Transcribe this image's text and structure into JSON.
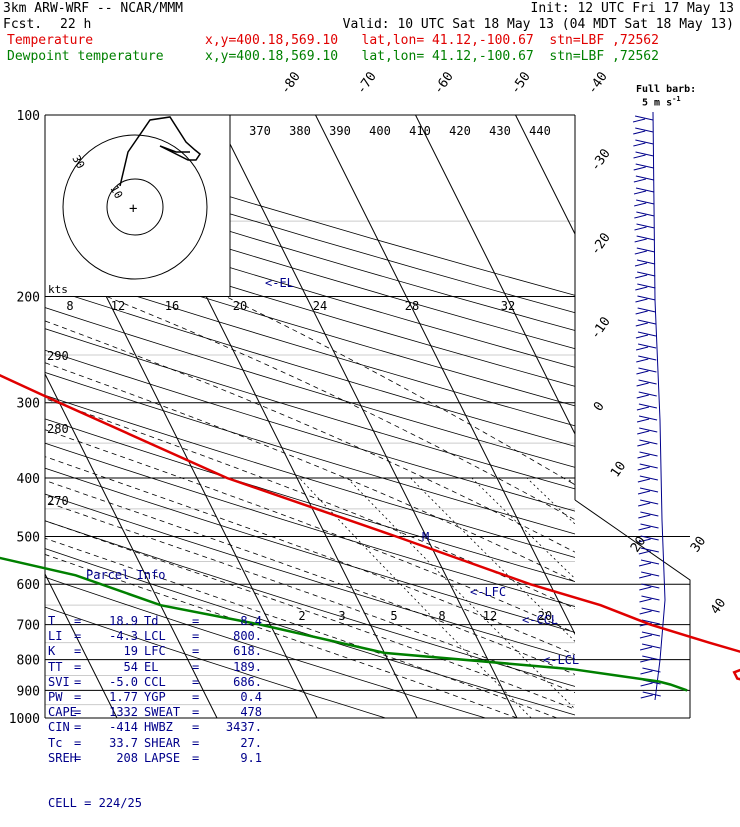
{
  "header": {
    "model": "3km ARW-WRF -- NCAR/MMM",
    "init": "Init: 12 UTC Fri 17 May 13",
    "fcst_label": "Fcst.",
    "fcst_value": "22 h",
    "valid": "Valid: 10 UTC Sat 18 May 13 (04 MDT Sat 18 May 13)",
    "temp_label": "Temperature",
    "temp_loc": "x,y=400.18,569.10   lat,lon= 41.12,-100.67  stn=LBF ,72562",
    "dew_label": "Dewpoint temperature",
    "dew_loc": "x,y=400.18,569.10   lat,lon= 41.12,-100.67  stn=LBF ,72562",
    "full_barb": "Full barb:",
    "full_barb_unit": "5 m s",
    "full_barb_sup": "-1"
  },
  "colors": {
    "temperature": "#e00000",
    "dewpoint": "#008000",
    "labels": "#00008b"
  },
  "hodograph": {
    "unit_label": "kts",
    "ring_labels": [
      "30",
      "10"
    ]
  },
  "parcel": {
    "title": "Parcel Info",
    "rows": [
      [
        "T",
        "18.9",
        "Td",
        "8.4"
      ],
      [
        "LI",
        "-4.3",
        "LCL",
        "800."
      ],
      [
        "K",
        "19",
        "LFC",
        "618."
      ],
      [
        "TT",
        "54",
        "EL",
        "189."
      ],
      [
        "SVI",
        "-5.0",
        "CCL",
        "686."
      ],
      [
        "PW",
        "1.77",
        "YGP",
        "0.4"
      ],
      [
        "CAPE",
        "1332",
        "SWEAT",
        "478"
      ],
      [
        "CIN",
        "-414",
        "HWBZ",
        "3437."
      ],
      [
        "Tc",
        "33.7",
        "SHEAR",
        "27."
      ],
      [
        "SREH",
        "208",
        "LAPSE",
        "9.1"
      ]
    ],
    "cell_label": "CELL =",
    "cell_value": "224/25"
  },
  "chart_data": {
    "type": "line",
    "chart_kind": "skew-T log-p sounding",
    "y_axis": {
      "scale": "log",
      "ylim": [
        1000,
        100
      ],
      "ticks": [
        100,
        200,
        300,
        400,
        500,
        600,
        700,
        800,
        900,
        1000
      ]
    },
    "isotherm_labels": [
      "-80",
      "-70",
      "-60",
      "-50",
      "-40",
      "-30",
      "-20",
      "-10",
      "0",
      "10",
      "20",
      "30",
      "40"
    ],
    "theta_labels": [
      "370",
      "380",
      "390",
      "400",
      "410",
      "420",
      "430",
      "440"
    ],
    "mixing_ratio_upper": [
      "8",
      "12",
      "16",
      "20",
      "24",
      "28",
      "32"
    ],
    "mixing_ratio_lower": [
      "2",
      "3",
      "5",
      "8",
      "12",
      "20"
    ],
    "left_side_labels": [
      "290",
      "280",
      "270"
    ],
    "level_markers": [
      "<-EL",
      "<-LFC",
      "<-CCL",
      "<-LCL"
    ],
    "series": [
      {
        "name": "Temperature",
        "color": "#e00000",
        "points": [
          [
            100,
            -56
          ],
          [
            110,
            -59
          ],
          [
            130,
            -59
          ],
          [
            150,
            -58
          ],
          [
            170,
            -59
          ],
          [
            180,
            -61
          ],
          [
            200,
            -57
          ],
          [
            250,
            -48
          ],
          [
            300,
            -40
          ],
          [
            400,
            -27
          ],
          [
            500,
            -13
          ],
          [
            600,
            -2
          ],
          [
            650,
            4
          ],
          [
            700,
            8
          ],
          [
            750,
            13
          ],
          [
            790,
            17
          ],
          [
            810,
            17
          ],
          [
            840,
            14
          ],
          [
            860,
            14
          ],
          [
            880,
            16
          ],
          [
            905,
            18.9
          ]
        ]
      },
      {
        "name": "Dewpoint temperature",
        "color": "#008000",
        "points": [
          [
            100,
            -78
          ],
          [
            130,
            -84
          ],
          [
            150,
            -89
          ],
          [
            170,
            -87
          ],
          [
            200,
            -82
          ],
          [
            250,
            -72
          ],
          [
            300,
            -64
          ],
          [
            350,
            -58
          ],
          [
            400,
            -56
          ],
          [
            450,
            -62
          ],
          [
            480,
            -65
          ],
          [
            500,
            -62
          ],
          [
            580,
            -47
          ],
          [
            650,
            -40
          ],
          [
            700,
            -31
          ],
          [
            780,
            -20
          ],
          [
            830,
            -2
          ],
          [
            850,
            2
          ],
          [
            870,
            6
          ],
          [
            880,
            7
          ],
          [
            900,
            8.4
          ]
        ]
      }
    ]
  }
}
